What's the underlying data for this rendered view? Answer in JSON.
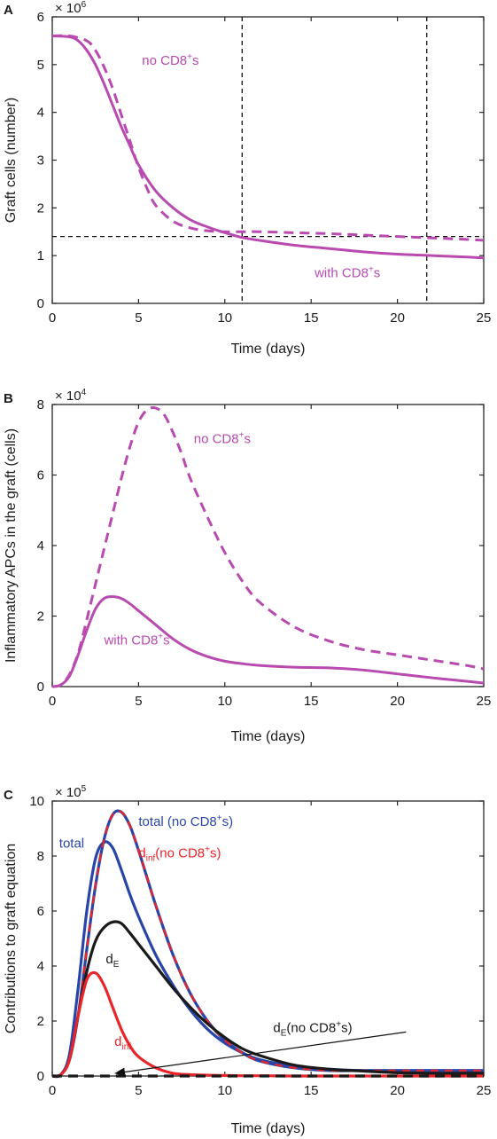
{
  "chart_data": [
    {
      "panel": "A",
      "type": "line",
      "multiplier_base": "× 10",
      "multiplier_exp": "6",
      "xlabel": "Time (days)",
      "ylabel": "Graft cells (number)",
      "xlim": [
        0,
        25
      ],
      "ylim": [
        0,
        6
      ],
      "xticks": [
        "0",
        "5",
        "10",
        "15",
        "20",
        "25"
      ],
      "yticks": [
        "0",
        "1",
        "2",
        "3",
        "4",
        "5",
        "6"
      ],
      "series": [
        {
          "style": "solid",
          "color": "#b84ab0",
          "x": [
            0,
            1,
            1.5,
            2,
            2.5,
            3,
            3.5,
            4,
            4.5,
            5,
            6,
            7,
            8,
            9,
            10,
            11,
            12,
            14,
            16,
            18,
            20,
            22,
            24,
            25
          ],
          "y": [
            5.6,
            5.58,
            5.5,
            5.3,
            5.0,
            4.6,
            4.15,
            3.7,
            3.3,
            2.9,
            2.35,
            2.0,
            1.75,
            1.6,
            1.48,
            1.38,
            1.32,
            1.22,
            1.15,
            1.08,
            1.03,
            1.0,
            0.97,
            0.95
          ]
        },
        {
          "style": "dashed",
          "color": "#b84ab0",
          "x": [
            0,
            1,
            2,
            2.5,
            3,
            3.5,
            4,
            4.5,
            5,
            5.5,
            6,
            7,
            8,
            9,
            10,
            11,
            12,
            14,
            16,
            18,
            20,
            22,
            24,
            25
          ],
          "y": [
            5.6,
            5.6,
            5.5,
            5.3,
            4.95,
            4.5,
            3.95,
            3.4,
            2.85,
            2.4,
            2.05,
            1.72,
            1.58,
            1.52,
            1.5,
            1.5,
            1.5,
            1.48,
            1.46,
            1.43,
            1.4,
            1.37,
            1.34,
            1.32
          ]
        }
      ],
      "reference_lines": [
        {
          "orientation": "horizontal",
          "value": 1.4
        },
        {
          "orientation": "vertical",
          "value": 11
        },
        {
          "orientation": "vertical",
          "value": 21.7
        }
      ],
      "annotations": [
        {
          "base": "no CD8",
          "sup": "+",
          "tail": "s",
          "x": 5.2,
          "y": 5.0
        },
        {
          "base": "with CD8",
          "sup": "+",
          "tail": "s",
          "x": 15.2,
          "y": 0.55
        }
      ]
    },
    {
      "panel": "B",
      "type": "line",
      "multiplier_base": "× 10",
      "multiplier_exp": "4",
      "xlabel": "Time (days)",
      "ylabel": "Inflammatory APCs in the graft (cells)",
      "xlim": [
        0,
        25
      ],
      "ylim": [
        0,
        8
      ],
      "xticks": [
        "0",
        "5",
        "10",
        "15",
        "20",
        "25"
      ],
      "yticks": [
        "0",
        "2",
        "4",
        "6",
        "8"
      ],
      "series": [
        {
          "style": "solid",
          "color": "#b84ab0",
          "x": [
            0,
            0.5,
            1,
            1.5,
            2,
            2.5,
            3,
            3.5,
            4,
            4.5,
            5,
            6,
            7,
            8,
            9,
            10,
            11,
            12,
            14,
            16,
            18,
            20,
            22,
            24,
            25
          ],
          "y": [
            0,
            0.05,
            0.3,
            0.9,
            1.6,
            2.2,
            2.5,
            2.55,
            2.5,
            2.35,
            2.15,
            1.75,
            1.35,
            1.05,
            0.85,
            0.72,
            0.65,
            0.6,
            0.55,
            0.53,
            0.47,
            0.36,
            0.25,
            0.15,
            0.1
          ]
        },
        {
          "style": "dashed",
          "color": "#b84ab0",
          "x": [
            0,
            0.5,
            1,
            1.5,
            2,
            2.5,
            3,
            3.5,
            4,
            4.5,
            5,
            5.5,
            6,
            6.5,
            7,
            7.5,
            8,
            9,
            10,
            11,
            12,
            14,
            16,
            18,
            20,
            22,
            24,
            25
          ],
          "y": [
            0,
            0.05,
            0.35,
            0.95,
            1.9,
            2.9,
            3.9,
            4.9,
            5.9,
            6.8,
            7.5,
            7.85,
            7.9,
            7.7,
            7.2,
            6.6,
            5.9,
            4.8,
            3.8,
            3.0,
            2.4,
            1.7,
            1.3,
            1.05,
            0.9,
            0.75,
            0.6,
            0.5
          ]
        }
      ],
      "annotations": [
        {
          "base": "no CD8",
          "sup": "+",
          "tail": "s",
          "x": 8.2,
          "y": 6.9
        },
        {
          "base": "with CD8",
          "sup": "+",
          "tail": "s",
          "x": 3.0,
          "y": 1.2
        }
      ]
    },
    {
      "panel": "C",
      "type": "line",
      "multiplier_base": "× 10",
      "multiplier_exp": "5",
      "xlabel": "Time (days)",
      "ylabel": "Contributions to graft equation",
      "xlim": [
        0,
        25
      ],
      "ylim": [
        0,
        10
      ],
      "xticks": [
        "0",
        "5",
        "10",
        "15",
        "20",
        "25"
      ],
      "yticks": [
        "0",
        "2",
        "4",
        "6",
        "8",
        "10"
      ],
      "series": [
        {
          "style": "solid",
          "color": "#2a45a8",
          "width": 3.2,
          "x": [
            0,
            0.5,
            1,
            1.5,
            2,
            2.5,
            3,
            3.5,
            4,
            4.5,
            5,
            6,
            7,
            8,
            9,
            10,
            11,
            12,
            14,
            16,
            18,
            20,
            22,
            24,
            25
          ],
          "y": [
            0,
            0.05,
            0.8,
            3.2,
            6.0,
            7.9,
            8.5,
            8.3,
            7.5,
            6.6,
            5.8,
            4.4,
            3.3,
            2.4,
            1.7,
            1.2,
            0.85,
            0.6,
            0.35,
            0.25,
            0.2,
            0.2,
            0.2,
            0.2,
            0.2
          ]
        },
        {
          "style": "solid",
          "color": "#2a45a8",
          "width": 3.2,
          "x": [
            0,
            0.5,
            1,
            1.5,
            2,
            2.5,
            3,
            3.5,
            4,
            4.5,
            5,
            5.5,
            6,
            7,
            8,
            9,
            10,
            11,
            12,
            14,
            16,
            18,
            20,
            22,
            24,
            25
          ],
          "y": [
            0,
            0.05,
            0.6,
            2.2,
            4.6,
            6.9,
            8.6,
            9.5,
            9.6,
            9.1,
            8.2,
            7.2,
            6.2,
            4.4,
            3.0,
            2.0,
            1.3,
            0.85,
            0.55,
            0.3,
            0.2,
            0.2,
            0.2,
            0.2,
            0.2,
            0.2
          ]
        },
        {
          "style": "dashed",
          "color": "#e8252a",
          "width": 2.2,
          "x": [
            0,
            0.5,
            1,
            1.5,
            2,
            2.5,
            3,
            3.5,
            4,
            4.5,
            5,
            5.5,
            6,
            7,
            8,
            9,
            10,
            11,
            12,
            14,
            16,
            18,
            20,
            22,
            24,
            25
          ],
          "y": [
            0,
            0.05,
            0.6,
            2.2,
            4.6,
            6.9,
            8.6,
            9.5,
            9.6,
            9.1,
            8.2,
            7.2,
            6.2,
            4.4,
            3.0,
            2.0,
            1.3,
            0.85,
            0.55,
            0.3,
            0.2,
            0.2,
            0.2,
            0.2,
            0.2,
            0.2
          ]
        },
        {
          "style": "solid",
          "color": "#1a1a1a",
          "width": 3.2,
          "x": [
            0,
            0.5,
            1,
            1.5,
            2,
            2.5,
            3,
            3.5,
            4,
            4.5,
            5,
            6,
            7,
            8,
            9,
            10,
            11,
            12,
            14,
            16,
            18,
            20,
            22,
            24,
            25
          ],
          "y": [
            0,
            0.05,
            0.6,
            2.2,
            3.8,
            4.9,
            5.4,
            5.6,
            5.55,
            5.2,
            4.8,
            4.0,
            3.2,
            2.5,
            1.9,
            1.4,
            1.0,
            0.75,
            0.4,
            0.25,
            0.18,
            0.12,
            0.1,
            0.1,
            0.1
          ]
        },
        {
          "style": "solid",
          "color": "#e8252a",
          "width": 3.2,
          "x": [
            0,
            0.5,
            1,
            1.5,
            2,
            2.5,
            3,
            3.5,
            4,
            4.5,
            5,
            6,
            7,
            8,
            9,
            10,
            11,
            12,
            14,
            16,
            18,
            20,
            22,
            24,
            25
          ],
          "y": [
            0,
            0.05,
            0.6,
            2.2,
            3.5,
            3.75,
            3.3,
            2.5,
            1.7,
            1.1,
            0.7,
            0.3,
            0.1,
            0.05,
            0.03,
            0.02,
            0.01,
            0.01,
            0,
            0,
            0,
            0,
            0,
            0,
            0
          ]
        },
        {
          "style": "dashed",
          "color": "#1a1a1a",
          "width": 3.2,
          "x": [
            0,
            25
          ],
          "y": [
            0,
            0
          ]
        }
      ],
      "arrow": {
        "from": [
          20.5,
          1.6
        ],
        "to": [
          3.7,
          0.1
        ]
      },
      "annotations": [
        {
          "base": "total",
          "x": 0.4,
          "y": 8.3,
          "color": "#2a45a8"
        },
        {
          "base": "total (no CD8",
          "sup": "+",
          "tail": "s)",
          "x": 5.0,
          "y": 9.1,
          "color": "#2a45a8"
        },
        {
          "base": "d",
          "sub": "inf",
          "tail": "(no CD8",
          "sup": "+",
          "tail2": "s)",
          "x": 5.0,
          "y": 7.95,
          "color": "#e8252a"
        },
        {
          "base": "d",
          "sub": "E",
          "x": 3.1,
          "y": 4.1,
          "color": "#1a1a1a"
        },
        {
          "base": "d",
          "sub": "inf",
          "x": 3.6,
          "y": 1.1,
          "color": "#e8252a"
        },
        {
          "base": "d",
          "sub": "E",
          "tail": "(no CD8",
          "sup": "+",
          "tail2": "s)",
          "x": 12.8,
          "y": 1.6,
          "color": "#1a1a1a"
        }
      ]
    }
  ]
}
